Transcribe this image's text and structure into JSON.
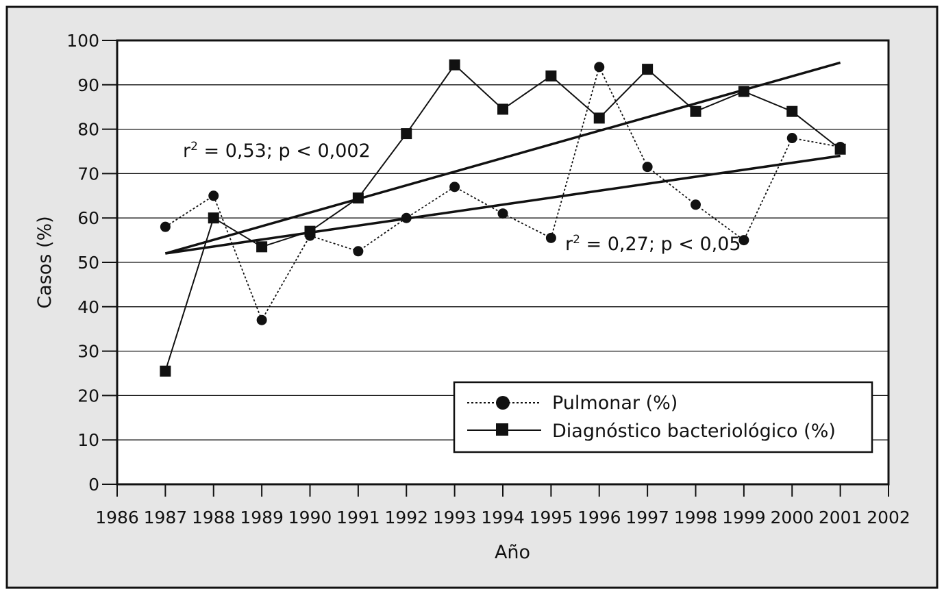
{
  "colors": {
    "background": "#e6e6e6",
    "plot": "#ffffff",
    "ink": "#111111"
  },
  "chart_data": {
    "type": "line",
    "xlabel": "Año",
    "ylabel": "Casos (%)",
    "xlim": [
      1986,
      2002
    ],
    "ylim": [
      0,
      100
    ],
    "xticks": [
      1986,
      1987,
      1988,
      1989,
      1990,
      1991,
      1992,
      1993,
      1994,
      1995,
      1996,
      1997,
      1998,
      1999,
      2000,
      2001,
      2002
    ],
    "yticks": [
      0,
      10,
      20,
      30,
      40,
      50,
      60,
      70,
      80,
      90,
      100
    ],
    "grid": "horizontal",
    "legend_position": "bottom-right",
    "x": [
      1987,
      1988,
      1989,
      1990,
      1991,
      1992,
      1993,
      1994,
      1995,
      1996,
      1997,
      1998,
      1999,
      2000,
      2001
    ],
    "series": [
      {
        "name": "Pulmonar (%)",
        "marker": "circle",
        "line": "dotted",
        "values": [
          58,
          65,
          37,
          56,
          52.5,
          60,
          67,
          61,
          55.5,
          94,
          71.5,
          63,
          55,
          78,
          76
        ],
        "trend": {
          "x": [
            1987,
            2001
          ],
          "y": [
            52,
            74
          ],
          "annotation_prefix": "r",
          "annotation_exp": "2",
          "annotation_text": " = 0,27; p < 0,05"
        }
      },
      {
        "name": "Diagnóstico bacteriológico (%)",
        "marker": "square",
        "line": "solid",
        "values": [
          25.5,
          60,
          53.5,
          57,
          64.5,
          79,
          94.5,
          84.5,
          92,
          82.5,
          93.5,
          84,
          88.5,
          84,
          75.5
        ],
        "trend": {
          "x": [
            1987,
            2001
          ],
          "y": [
            52,
            95
          ],
          "annotation_prefix": "r",
          "annotation_exp": "2",
          "annotation_text": " = 0,53; p < 0,002"
        }
      }
    ]
  }
}
